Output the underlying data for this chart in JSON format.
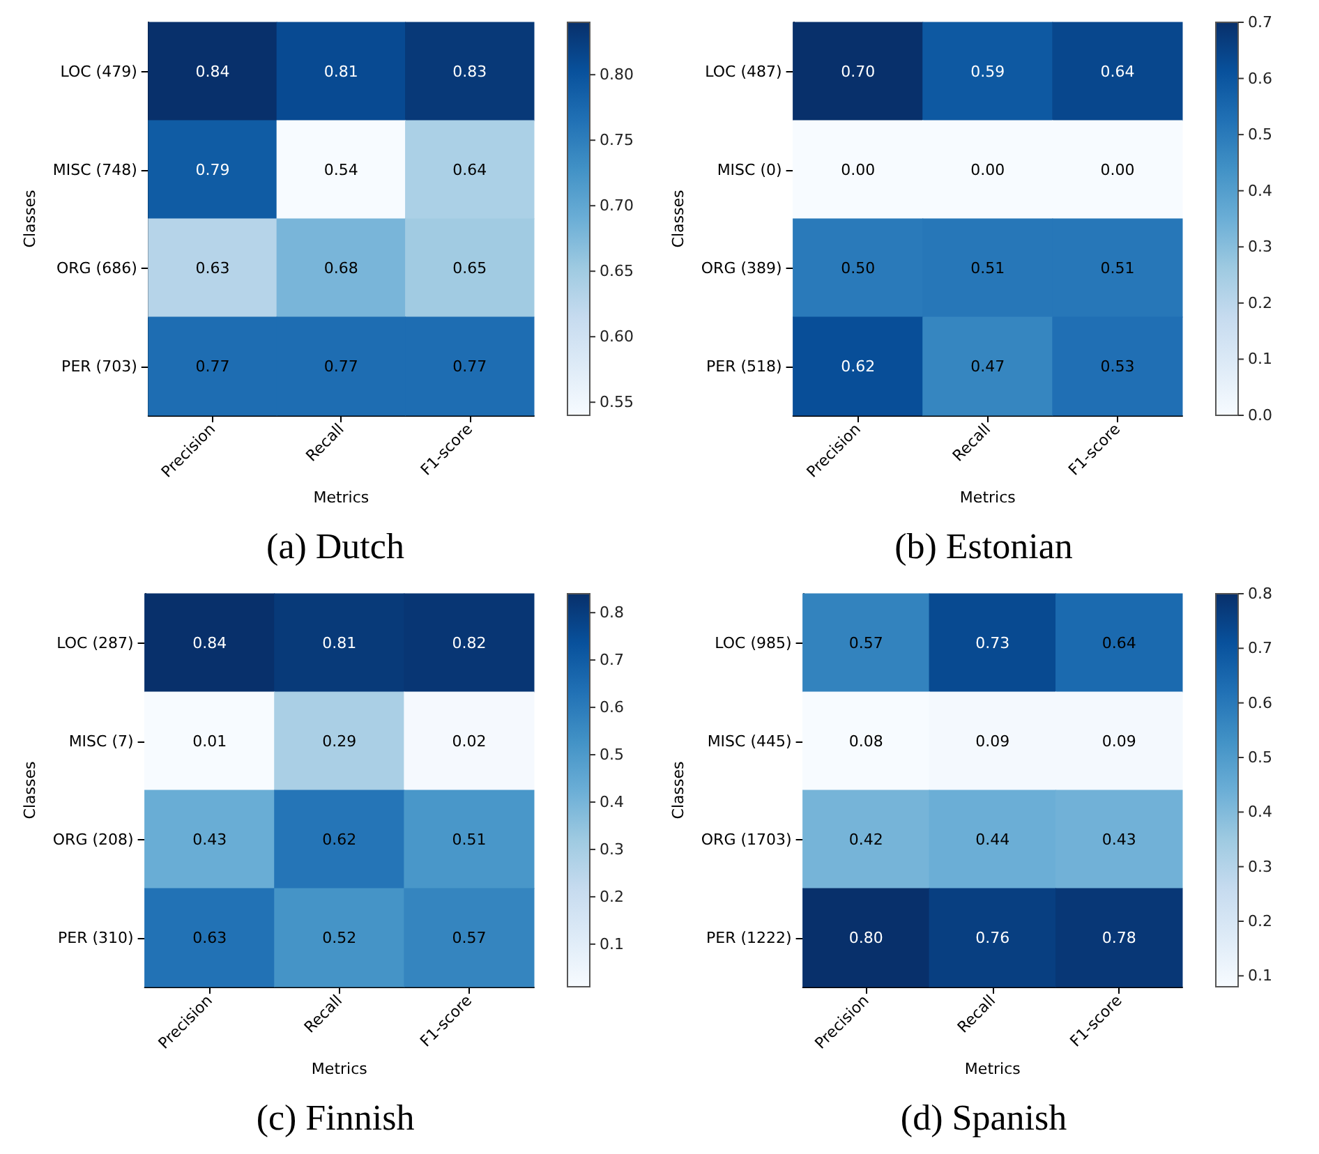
{
  "chart_data": [
    {
      "type": "heatmap",
      "title": "(a) Dutch",
      "xlabel": "Metrics",
      "ylabel": "Classes",
      "categories": [
        "Precision",
        "Recall",
        "F1-score"
      ],
      "y_categories": [
        "LOC (479)",
        "MISC (748)",
        "ORG (686)",
        "PER (703)"
      ],
      "cells": [
        [
          0.84,
          0.81,
          0.83
        ],
        [
          0.79,
          0.54,
          0.64
        ],
        [
          0.63,
          0.68,
          0.65
        ],
        [
          0.77,
          0.77,
          0.77
        ]
      ],
      "cell_labels": [
        [
          "0.84",
          "0.81",
          "0.83"
        ],
        [
          "0.79",
          "0.54",
          "0.64"
        ],
        [
          "0.63",
          "0.68",
          "0.65"
        ],
        [
          "0.77",
          "0.77",
          "0.77"
        ]
      ],
      "clim": [
        0.54,
        0.84
      ],
      "cticks": [
        {
          "value": 0.55,
          "label": "0.55"
        },
        {
          "value": 0.6,
          "label": "0.60"
        },
        {
          "value": 0.65,
          "label": "0.65"
        },
        {
          "value": 0.7,
          "label": "0.70"
        },
        {
          "value": 0.75,
          "label": "0.75"
        },
        {
          "value": 0.8,
          "label": "0.80"
        }
      ],
      "data_labels": true
    },
    {
      "type": "heatmap",
      "title": "(b) Estonian",
      "xlabel": "Metrics",
      "ylabel": "Classes",
      "categories": [
        "Precision",
        "Recall",
        "F1-score"
      ],
      "y_categories": [
        "LOC (487)",
        "MISC (0)",
        "ORG (389)",
        "PER (518)"
      ],
      "cells": [
        [
          0.7,
          0.59,
          0.64
        ],
        [
          0.0,
          0.0,
          0.0
        ],
        [
          0.5,
          0.51,
          0.51
        ],
        [
          0.62,
          0.47,
          0.53
        ]
      ],
      "cell_labels": [
        [
          "0.70",
          "0.59",
          "0.64"
        ],
        [
          "0.00",
          "0.00",
          "0.00"
        ],
        [
          "0.50",
          "0.51",
          "0.51"
        ],
        [
          "0.62",
          "0.47",
          "0.53"
        ]
      ],
      "clim": [
        0,
        0.7
      ],
      "cticks": [
        {
          "value": 0,
          "label": "0.0"
        },
        0.1,
        0.2,
        0.3,
        0.4,
        0.5,
        0.6,
        0.7
      ],
      "data_labels": true
    },
    {
      "type": "heatmap",
      "title": "(c) Finnish",
      "xlabel": "Metrics",
      "ylabel": "Classes",
      "categories": [
        "Precision",
        "Recall",
        "F1-score"
      ],
      "y_categories": [
        "LOC (287)",
        "MISC (7)",
        "ORG (208)",
        "PER (310)"
      ],
      "cells": [
        [
          0.84,
          0.81,
          0.82
        ],
        [
          0.01,
          0.29,
          0.02
        ],
        [
          0.43,
          0.62,
          0.51
        ],
        [
          0.63,
          0.52,
          0.57
        ]
      ],
      "cell_labels": [
        [
          "0.84",
          "0.81",
          "0.82"
        ],
        [
          "0.01",
          "0.29",
          "0.02"
        ],
        [
          "0.43",
          "0.62",
          "0.51"
        ],
        [
          "0.63",
          "0.52",
          "0.57"
        ]
      ],
      "clim": [
        0.01,
        0.84
      ],
      "cticks": [
        0.1,
        0.2,
        0.3,
        0.4,
        0.5,
        0.6,
        0.7,
        0.8
      ],
      "data_labels": true
    },
    {
      "type": "heatmap",
      "title": "(d) Spanish",
      "xlabel": "Metrics",
      "ylabel": "Classes",
      "categories": [
        "Precision",
        "Recall",
        "F1-score"
      ],
      "y_categories": [
        "LOC (985)",
        "MISC (445)",
        "ORG (1703)",
        "PER (1222)"
      ],
      "cells": [
        [
          0.57,
          0.73,
          0.64
        ],
        [
          0.08,
          0.09,
          0.09
        ],
        [
          0.42,
          0.44,
          0.43
        ],
        [
          0.8,
          0.76,
          0.78
        ]
      ],
      "cell_labels": [
        [
          "0.57",
          "0.73",
          "0.64"
        ],
        [
          "0.08",
          "0.09",
          "0.09"
        ],
        [
          "0.42",
          "0.44",
          "0.43"
        ],
        [
          "0.80",
          "0.76",
          "0.78"
        ]
      ],
      "clim": [
        0.08,
        0.8
      ],
      "cticks": [
        0.1,
        0.2,
        0.3,
        0.4,
        0.5,
        0.6,
        0.7,
        0.8
      ],
      "data_labels": true
    }
  ]
}
